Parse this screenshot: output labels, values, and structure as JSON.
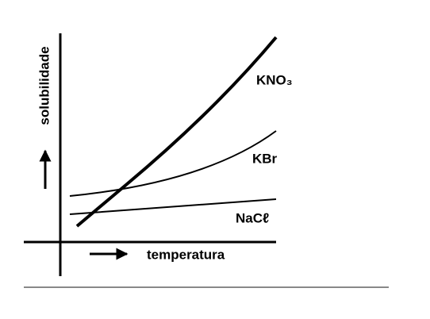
{
  "axes": {
    "y_label": "solubilidade",
    "x_label": "temperatura"
  },
  "curves": [
    {
      "label": "KNO₃"
    },
    {
      "label": "KBr"
    },
    {
      "label": "NaCℓ"
    }
  ]
}
